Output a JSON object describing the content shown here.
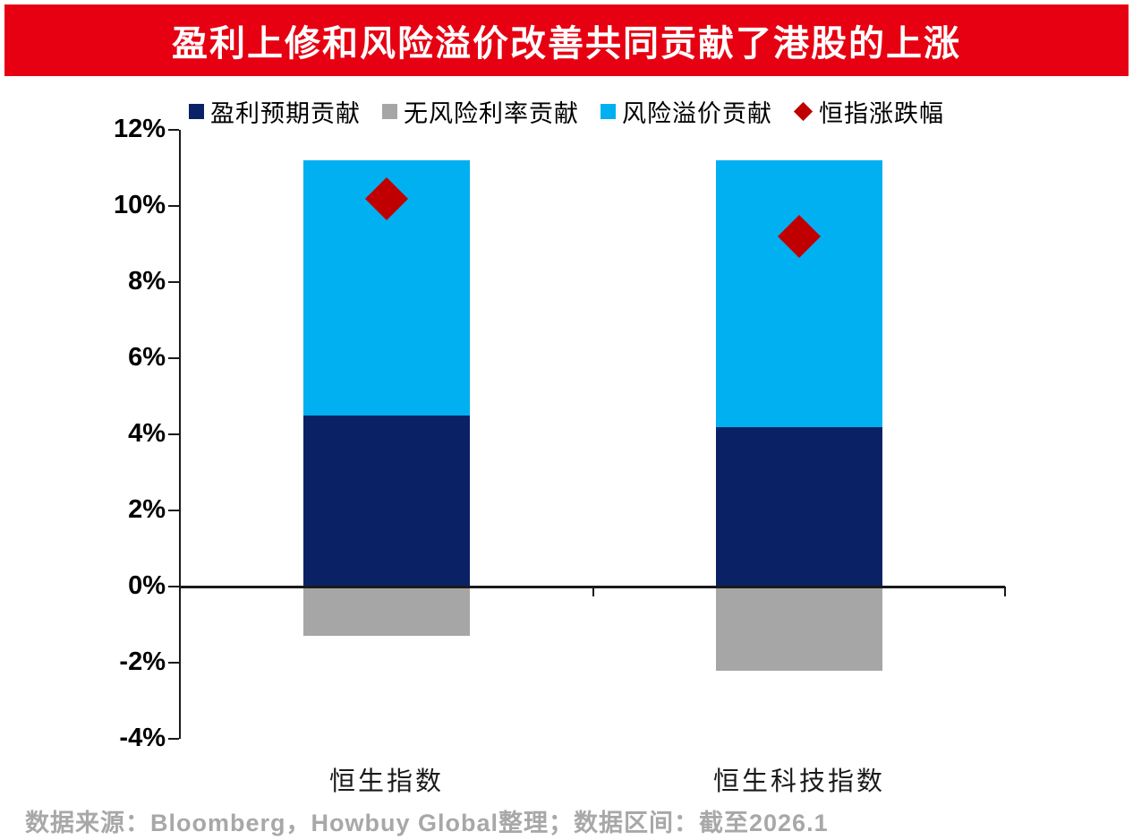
{
  "banner": {
    "title": "盈利上修和风险溢价改善共同贡献了港股的上涨",
    "bg_color": "#e60012",
    "text_color": "#ffffff"
  },
  "chart_data": {
    "type": "bar",
    "subtype": "stacked-bars-with-scatter-markers",
    "categories": [
      "恒生指数",
      "恒生科技指数"
    ],
    "series": [
      {
        "name": "盈利预期贡献",
        "color": "#0a2265",
        "values": [
          4.5,
          4.2
        ]
      },
      {
        "name": "无风险利率贡献",
        "color": "#a6a6a6",
        "values": [
          -1.3,
          -2.2
        ]
      },
      {
        "name": "风险溢价贡献",
        "color": "#00b0f0",
        "values": [
          6.7,
          7.0
        ]
      }
    ],
    "points": {
      "name": "恒指涨跌幅",
      "color": "#c00000",
      "marker": "diamond",
      "values": [
        10.2,
        9.2
      ]
    },
    "ylim": [
      -4,
      12
    ],
    "ytick_interval": 2,
    "ytick_labels": [
      "12%",
      "10%",
      "8%",
      "6%",
      "4%",
      "2%",
      "0%",
      "-2%",
      "-4%"
    ],
    "legend_position": "top",
    "grid": false,
    "axis_color": "#1a1a1a"
  },
  "footer": {
    "source_text": "数据来源：Bloomberg，Howbuy Global整理；数据区间：截至2026.1"
  }
}
